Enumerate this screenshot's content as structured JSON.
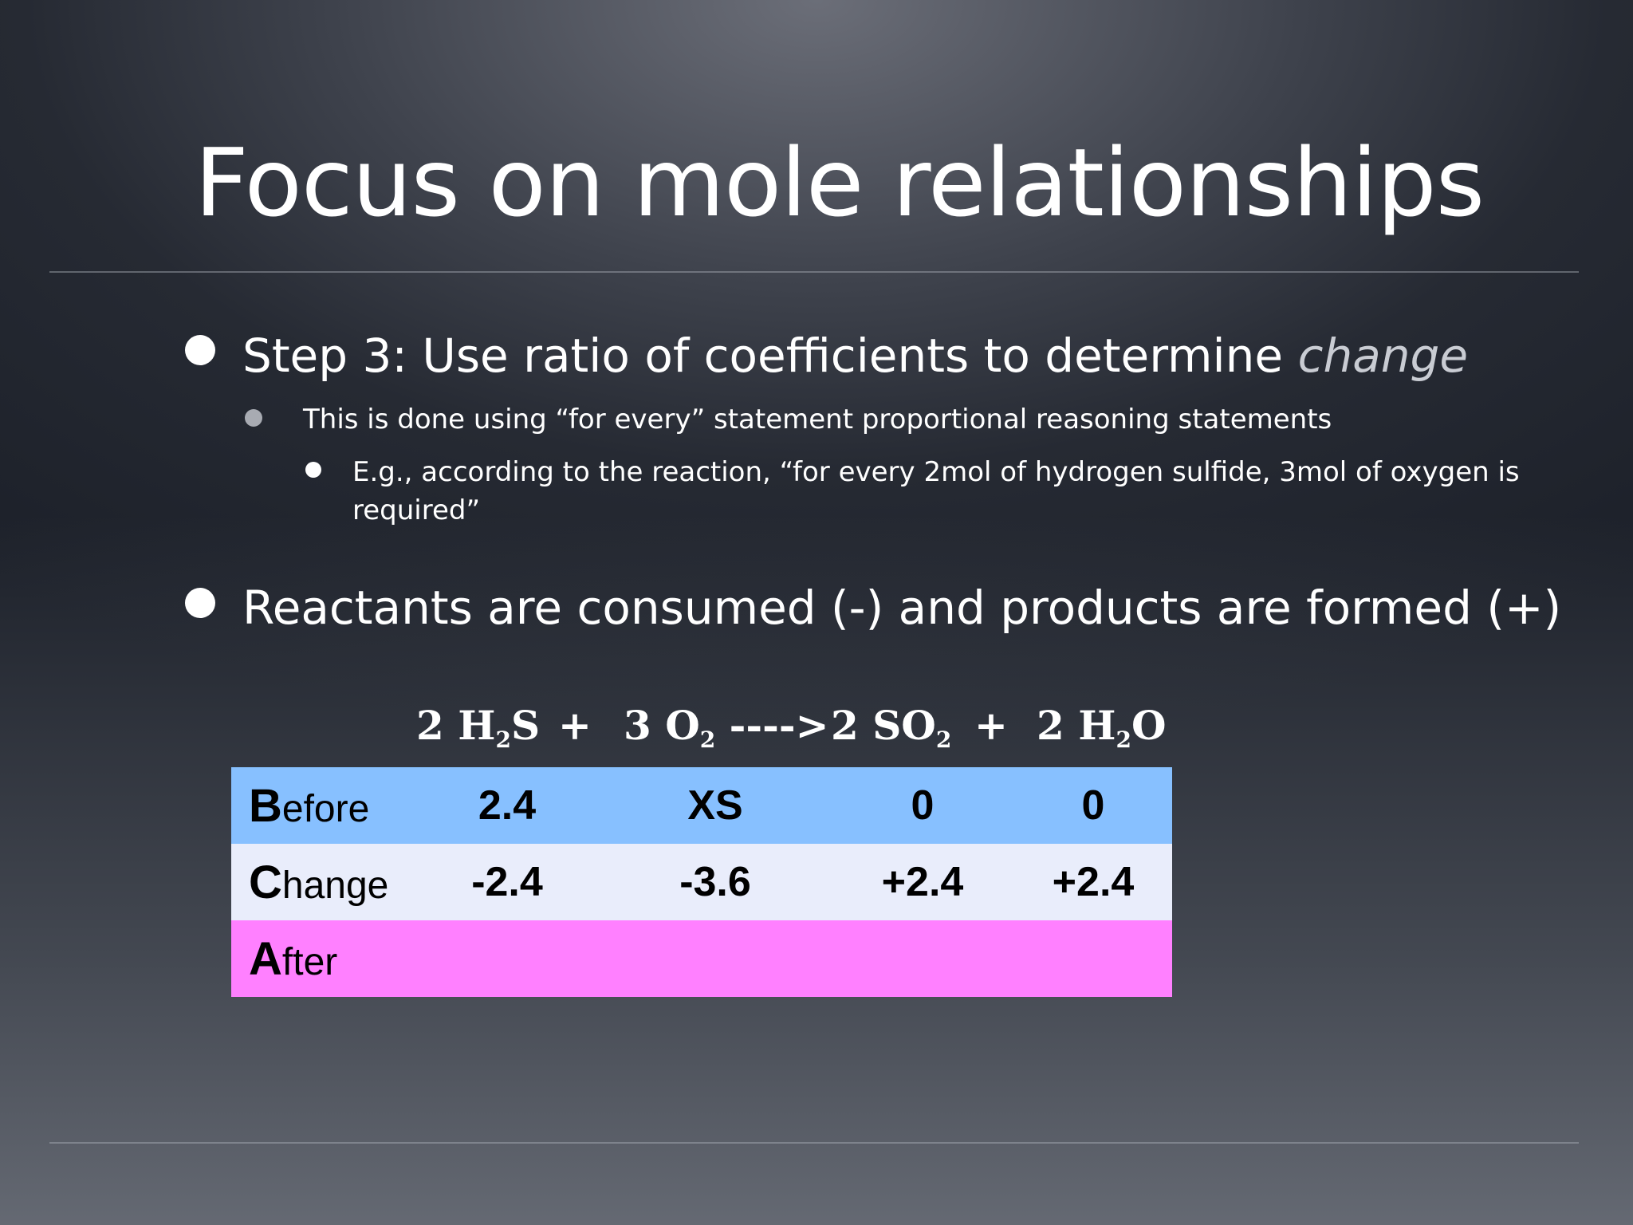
{
  "slide": {
    "title": "Focus on mole relationships",
    "bullets": [
      {
        "text": "Step 3: Use ratio of coefficients to determine ",
        "emphasis": "change",
        "sub": {
          "text": "This is done using “for every” statement proportional reasoning statements",
          "sub": {
            "line1": "E.g., according to the reaction, “for every 2mol of hydrogen sulfide, 3mol of oxygen is",
            "line2": "required”"
          }
        }
      },
      {
        "text": "Reactants are consumed (-) and products are formed (+)"
      }
    ],
    "equation": {
      "r1_coef": "2 H",
      "r1_sub": "2",
      "r1_tail": "S",
      "plus1": "+",
      "r2_coef": "3 O",
      "r2_sub": "2",
      "arrow": " ---->",
      "p1_coef": "2 SO",
      "p1_sub": "2",
      "plus2": "+",
      "p2_coef": "2 H",
      "p2_sub": "2",
      "p2_tail": "O"
    },
    "table": {
      "rows": [
        {
          "label_initial": "B",
          "label_rest": "efore",
          "values": [
            "2.4",
            "XS",
            "0",
            "0"
          ]
        },
        {
          "label_initial": "C",
          "label_rest": "hange",
          "values": [
            "-2.4",
            "-3.6",
            "+2.4",
            "+2.4"
          ]
        },
        {
          "label_initial": "A",
          "label_rest": "fter",
          "values": [
            "",
            "",
            "",
            ""
          ]
        }
      ],
      "colors": {
        "before": "#87c0ff",
        "change": "#e9edfb",
        "after": "#ff80ff"
      }
    }
  }
}
